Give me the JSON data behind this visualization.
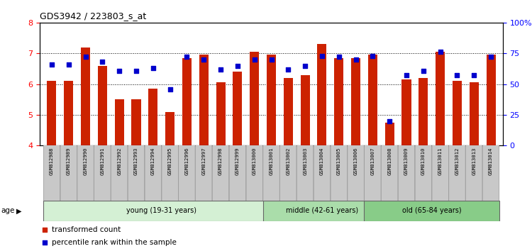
{
  "title": "GDS3942 / 223803_s_at",
  "samples": [
    "GSM812988",
    "GSM812989",
    "GSM812990",
    "GSM812991",
    "GSM812992",
    "GSM812993",
    "GSM812994",
    "GSM812995",
    "GSM812996",
    "GSM812997",
    "GSM812998",
    "GSM812999",
    "GSM813000",
    "GSM813001",
    "GSM813002",
    "GSM813003",
    "GSM813004",
    "GSM813005",
    "GSM813006",
    "GSM813007",
    "GSM813008",
    "GSM813009",
    "GSM813010",
    "GSM813011",
    "GSM813012",
    "GSM813013",
    "GSM813014"
  ],
  "bar_values": [
    6.1,
    6.1,
    7.2,
    6.6,
    5.5,
    5.5,
    5.85,
    5.1,
    6.85,
    6.95,
    6.05,
    6.4,
    7.05,
    6.95,
    6.2,
    6.3,
    7.3,
    6.85,
    6.85,
    6.95,
    4.75,
    6.15,
    6.2,
    7.05,
    6.1,
    6.05,
    6.95
  ],
  "dot_values": [
    66,
    66,
    72,
    68,
    61,
    61,
    63,
    46,
    72,
    70,
    62,
    65,
    70,
    70,
    62,
    65,
    73,
    72,
    70,
    73,
    20,
    57,
    61,
    76,
    57,
    57,
    72
  ],
  "age_groups": [
    {
      "label": "young (19-31 years)",
      "start": 0,
      "end": 13,
      "color": "#d4f0d4"
    },
    {
      "label": "middle (42-61 years)",
      "start": 13,
      "end": 19,
      "color": "#aaddaa"
    },
    {
      "label": "old (65-84 years)",
      "start": 19,
      "end": 26,
      "color": "#88cc88"
    }
  ],
  "ylim_left": [
    4,
    8
  ],
  "ylim_right": [
    0,
    100
  ],
  "yticks_left": [
    4,
    5,
    6,
    7,
    8
  ],
  "yticks_right": [
    0,
    25,
    50,
    75,
    100
  ],
  "ytick_labels_right": [
    "0",
    "25",
    "50",
    "75",
    "100%"
  ],
  "bar_color": "#cc2200",
  "dot_color": "#0000cc",
  "bar_width": 0.55,
  "bar_bottom": 4.0,
  "legend_items": [
    {
      "label": "transformed count",
      "color": "#cc2200"
    },
    {
      "label": "percentile rank within the sample",
      "color": "#0000cc"
    }
  ]
}
